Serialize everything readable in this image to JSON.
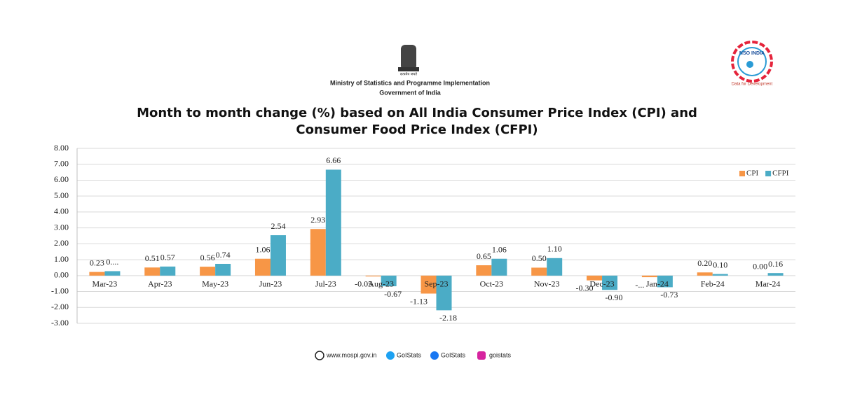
{
  "header": {
    "emblem_text": "सत्यमेव जयते",
    "ministry": "Ministry of Statistics and Programme Implementation",
    "government": "Government of India"
  },
  "logo": {
    "name": "NSO INDIA",
    "tagline": "Data for Development"
  },
  "footer": {
    "website": "www.mospi.gov.in",
    "twitter": "GoIStats",
    "facebook": "GoIStats",
    "instagram": "goistats"
  },
  "chart_data": {
    "type": "bar",
    "title": "Month to month change (%) based on All India Consumer Price Index (CPI) and Consumer Food Price Index (CFPI)",
    "categories": [
      "Mar-23",
      "Apr-23",
      "May-23",
      "Jun-23",
      "Jul-23",
      "Aug-23",
      "Sep-23",
      "Oct-23",
      "Nov-23",
      "Dec-23",
      "Jan-24",
      "Feb-24",
      "Mar-24"
    ],
    "series": [
      {
        "name": "CPI",
        "color": "#f79646",
        "values": [
          0.23,
          0.51,
          0.56,
          1.06,
          2.93,
          -0.05,
          -1.13,
          0.65,
          0.5,
          -0.3,
          -0.1,
          0.2,
          0.0
        ],
        "value_labels": [
          "0.23",
          "0.51",
          "0.56",
          "1.06",
          "2.93",
          "-0.05",
          "-1.13",
          "0.65",
          "0.50",
          "-0.30",
          "-...",
          "0.20",
          "0.00"
        ]
      },
      {
        "name": "CFPI",
        "color": "#4bacc6",
        "values": [
          0.28,
          0.57,
          0.74,
          2.54,
          6.66,
          -0.67,
          -2.18,
          1.06,
          1.1,
          -0.9,
          -0.73,
          0.1,
          0.16
        ],
        "value_labels": [
          "0....",
          "0.57",
          "0.74",
          "2.54",
          "6.66",
          "-0.67",
          "-2.18",
          "1.06",
          "1.10",
          "-0.90",
          "-0.73",
          "0.10",
          "0.16"
        ]
      }
    ],
    "ylim": [
      -3,
      8
    ],
    "yticks": [
      {
        "value": -3,
        "label": "-3.00"
      },
      {
        "value": -2,
        "label": "-2.00"
      },
      {
        "value": -1,
        "label": "-1.00"
      },
      {
        "value": 0,
        "label": "0.00"
      },
      {
        "value": 1,
        "label": "1.00"
      },
      {
        "value": 2,
        "label": "2.00"
      },
      {
        "value": 3,
        "label": "3.00"
      },
      {
        "value": 4,
        "label": "4.00"
      },
      {
        "value": 5,
        "label": "5.00"
      },
      {
        "value": 6,
        "label": "6.00"
      },
      {
        "value": 7,
        "label": "7.00"
      },
      {
        "value": 8,
        "label": "8.00"
      }
    ],
    "grid": true,
    "legend": "top-right"
  }
}
